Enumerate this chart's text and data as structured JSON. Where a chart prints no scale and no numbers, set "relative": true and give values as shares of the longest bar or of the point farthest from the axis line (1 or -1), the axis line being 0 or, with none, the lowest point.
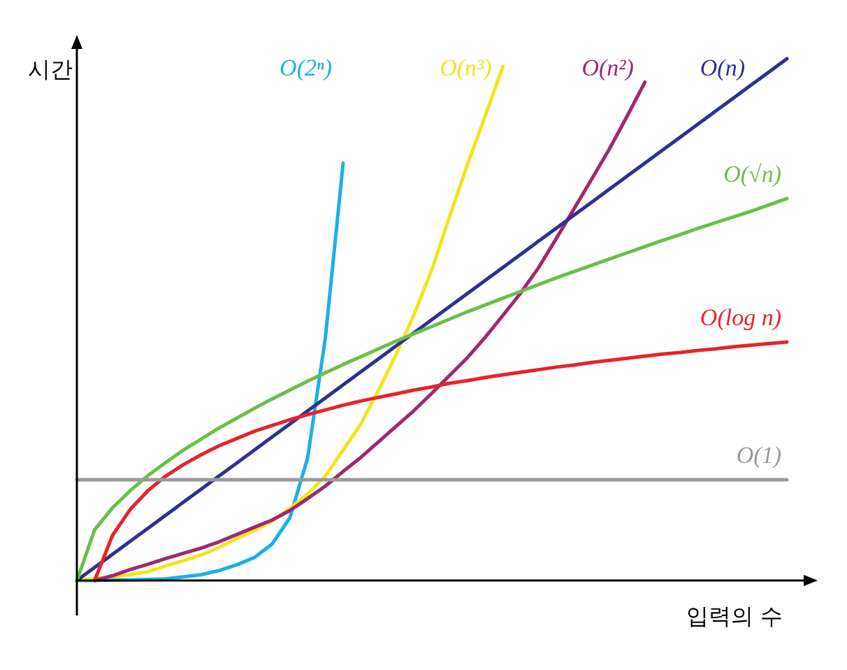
{
  "chart_data": {
    "type": "line",
    "relative": true,
    "xlabel": "입력의 수",
    "ylabel": "시간",
    "categories": [
      null,
      null,
      null,
      null,
      null,
      null,
      null,
      null,
      null,
      null,
      null,
      null,
      null,
      null,
      null,
      null,
      null,
      null,
      null,
      null,
      null,
      null,
      null,
      null,
      null,
      null,
      null,
      null,
      null,
      null,
      null,
      null,
      null,
      null,
      null,
      null,
      null,
      null,
      null,
      null,
      null
    ],
    "series": [
      {
        "name": "O(2ⁿ)",
        "color": "#1ab0e8",
        "values": [
          0,
          0,
          0.001,
          0.001,
          0.002,
          0.003,
          0.007,
          0.011,
          0.019,
          0.03,
          0.044,
          0.07,
          0.12,
          0.235,
          0.465,
          0.8,
          null,
          null,
          null,
          null,
          null,
          null,
          null,
          null,
          null,
          null,
          null,
          null,
          null,
          null,
          null,
          null,
          null,
          null,
          null,
          null,
          null,
          null,
          null,
          null,
          null
        ]
      },
      {
        "name": "O(n³)",
        "color": "#f2e51e",
        "values": [
          0,
          0.004,
          0.007,
          0.011,
          0.017,
          0.028,
          0.038,
          0.049,
          0.063,
          0.08,
          0.096,
          0.114,
          0.138,
          0.166,
          0.2,
          0.25,
          0.3,
          0.365,
          0.434,
          0.51,
          0.596,
          0.698,
          0.797,
          0.89,
          0.985,
          null,
          null,
          null,
          null,
          null,
          null,
          null,
          null,
          null,
          null,
          null,
          null,
          null,
          null,
          null,
          null
        ]
      },
      {
        "name": "O(n²)",
        "color": "#a0286e",
        "values": [
          null,
          0,
          0.009,
          0.021,
          0.031,
          0.042,
          0.052,
          0.062,
          0.074,
          0.088,
          0.102,
          0.116,
          0.134,
          0.157,
          0.181,
          0.209,
          0.236,
          0.266,
          0.296,
          0.326,
          0.359,
          0.393,
          0.427,
          0.466,
          0.508,
          0.551,
          0.599,
          0.655,
          0.712,
          0.769,
          0.827,
          0.89,
          0.955,
          null,
          null,
          null,
          null,
          null,
          null,
          null,
          null
        ]
      },
      {
        "name": "O(n)",
        "color": "#2e3192",
        "values": [
          0,
          0.025,
          0.05,
          0.075,
          0.1,
          0.125,
          0.15,
          0.175,
          0.2,
          0.225,
          0.25,
          0.275,
          0.3,
          0.325,
          0.35,
          0.375,
          0.4,
          0.425,
          0.45,
          0.475,
          0.5,
          0.525,
          0.55,
          0.575,
          0.6,
          0.625,
          0.65,
          0.675,
          0.7,
          0.725,
          0.75,
          0.775,
          0.8,
          0.825,
          0.85,
          0.875,
          0.9,
          0.925,
          0.95,
          0.975,
          1
        ]
      },
      {
        "name": "O(√n)",
        "color": "#6abf4b",
        "values": [
          0,
          0.097,
          0.139,
          0.172,
          0.201,
          0.226,
          0.25,
          0.271,
          0.292,
          0.311,
          0.33,
          0.348,
          0.365,
          0.382,
          0.398,
          0.414,
          0.429,
          0.444,
          0.459,
          0.473,
          0.487,
          0.501,
          0.515,
          0.528,
          0.541,
          0.554,
          0.567,
          0.58,
          0.592,
          0.604,
          0.616,
          0.628,
          0.64,
          0.652,
          0.663,
          0.675,
          0.686,
          0.697,
          0.708,
          0.72,
          0.732
        ]
      },
      {
        "name": "O(log n)",
        "color": "#e8232a",
        "values": [
          null,
          0,
          0.086,
          0.136,
          0.172,
          0.2,
          0.222,
          0.241,
          0.258,
          0.272,
          0.286,
          0.297,
          0.308,
          0.318,
          0.327,
          0.336,
          0.344,
          0.351,
          0.358,
          0.365,
          0.371,
          0.378,
          0.383,
          0.389,
          0.394,
          0.399,
          0.404,
          0.409,
          0.413,
          0.418,
          0.422,
          0.426,
          0.43,
          0.434,
          0.437,
          0.441,
          0.444,
          0.448,
          0.451,
          0.454,
          0.457
        ]
      },
      {
        "name": "O(1)",
        "color": "#999999",
        "values": [
          0.193,
          0.193,
          0.193,
          0.193,
          0.193,
          0.193,
          0.193,
          0.193,
          0.193,
          0.193,
          0.193,
          0.193,
          0.193,
          0.193,
          0.193,
          0.193,
          0.193,
          0.193,
          0.193,
          0.193,
          0.193,
          0.193,
          0.193,
          0.193,
          0.193,
          0.193,
          0.193,
          0.193,
          0.193,
          0.193,
          0.193,
          0.193,
          0.193,
          0.193,
          0.193,
          0.193,
          0.193,
          0.193,
          0.193,
          0.193,
          0.193
        ]
      }
    ]
  }
}
